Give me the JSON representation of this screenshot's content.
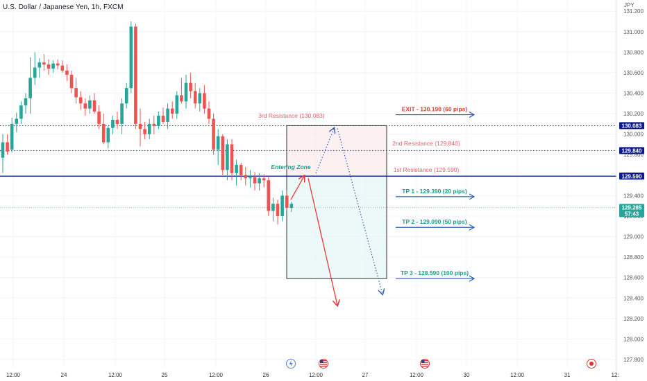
{
  "header": {
    "title": "U.S. Dollar / Japanese Yen, 1h, FXCM",
    "currency": "JPY"
  },
  "colors": {
    "bull": "#26a69a",
    "bear": "#ef5350",
    "navy": "#0d1b8c",
    "blue": "#2e5cb8",
    "red": "#e53935",
    "teal": "#1a9c8c",
    "dotted_green": "#7dcea0"
  },
  "chart_data": {
    "type": "candlestick",
    "ylim": [
      127.7,
      131.2
    ],
    "y_ticks": [
      "131.200",
      "131.000",
      "130.800",
      "130.600",
      "130.400",
      "130.200",
      "130.000",
      "129.800",
      "129.600",
      "129.400",
      "129.200",
      "129.000",
      "128.800",
      "128.600",
      "128.400",
      "128.200",
      "128.000",
      "127.800"
    ],
    "x_ticks": [
      "12:00",
      "24",
      "12:00",
      "25",
      "12:00",
      "26",
      "12:00",
      "27",
      "12:00",
      "30",
      "12:00",
      "31",
      "12:"
    ],
    "candles": [
      [
        0,
        129.77,
        130.0,
        129.62,
        129.92
      ],
      [
        1,
        129.92,
        130.0,
        129.8,
        129.83
      ],
      [
        2,
        129.85,
        130.16,
        129.82,
        130.1
      ],
      [
        3,
        130.1,
        130.21,
        130.02,
        130.15
      ],
      [
        4,
        130.15,
        130.32,
        130.1,
        130.28
      ],
      [
        5,
        130.28,
        130.4,
        130.2,
        130.35
      ],
      [
        6,
        130.35,
        130.75,
        130.2,
        130.55
      ],
      [
        7,
        130.55,
        130.8,
        130.48,
        130.65
      ],
      [
        8,
        130.65,
        130.74,
        130.55,
        130.7
      ],
      [
        9,
        130.7,
        130.78,
        130.62,
        130.68
      ],
      [
        10,
        130.68,
        130.73,
        130.58,
        130.64
      ],
      [
        11,
        130.64,
        130.72,
        130.6,
        130.69
      ],
      [
        12,
        130.69,
        130.73,
        130.63,
        130.67
      ],
      [
        13,
        130.67,
        130.72,
        130.6,
        130.62
      ],
      [
        14,
        130.62,
        130.68,
        130.52,
        130.58
      ],
      [
        15,
        130.58,
        130.62,
        130.4,
        130.45
      ],
      [
        16,
        130.45,
        130.55,
        130.3,
        130.36
      ],
      [
        17,
        130.36,
        130.42,
        130.24,
        130.3
      ],
      [
        18,
        130.3,
        130.35,
        130.18,
        130.25
      ],
      [
        19,
        130.25,
        130.38,
        130.2,
        130.33
      ],
      [
        20,
        130.33,
        130.4,
        130.2,
        130.22
      ],
      [
        21,
        130.22,
        130.28,
        130.05,
        130.1
      ],
      [
        22,
        130.1,
        130.2,
        129.9,
        129.92
      ],
      [
        23,
        129.92,
        130.08,
        129.86,
        130.06
      ],
      [
        24,
        130.06,
        130.18,
        130.0,
        130.14
      ],
      [
        25,
        130.14,
        130.22,
        130.05,
        130.1
      ],
      [
        26,
        130.1,
        130.35,
        130.0,
        130.3
      ],
      [
        27,
        130.3,
        130.5,
        130.25,
        130.45
      ],
      [
        28,
        130.45,
        131.1,
        130.4,
        131.05
      ],
      [
        29,
        131.05,
        131.08,
        130.05,
        130.1
      ],
      [
        30,
        130.1,
        130.25,
        129.88,
        130.05
      ],
      [
        31,
        130.05,
        130.12,
        129.95,
        130.0
      ],
      [
        32,
        130.0,
        130.15,
        129.95,
        130.1
      ],
      [
        33,
        130.1,
        130.18,
        130.0,
        130.08
      ],
      [
        34,
        130.08,
        130.22,
        130.05,
        130.18
      ],
      [
        35,
        130.18,
        130.26,
        130.1,
        130.12
      ],
      [
        36,
        130.12,
        130.3,
        130.05,
        130.25
      ],
      [
        37,
        130.25,
        130.32,
        130.15,
        130.2
      ],
      [
        38,
        130.2,
        130.42,
        130.15,
        130.38
      ],
      [
        39,
        130.38,
        130.55,
        130.3,
        130.32
      ],
      [
        40,
        130.32,
        130.58,
        130.25,
        130.5
      ],
      [
        41,
        130.5,
        130.6,
        130.35,
        130.42
      ],
      [
        42,
        130.42,
        130.5,
        130.25,
        130.3
      ],
      [
        43,
        130.3,
        130.45,
        130.22,
        130.4
      ],
      [
        44,
        130.4,
        130.48,
        130.2,
        130.25
      ],
      [
        45,
        130.25,
        130.32,
        130.1,
        130.15
      ],
      [
        46,
        130.15,
        130.2,
        129.8,
        129.85
      ],
      [
        47,
        129.85,
        130.05,
        129.7,
        129.98
      ],
      [
        48,
        129.98,
        130.0,
        129.6,
        129.65
      ],
      [
        49,
        129.65,
        129.95,
        129.55,
        129.9
      ],
      [
        50,
        129.9,
        129.95,
        129.55,
        129.62
      ],
      [
        51,
        129.62,
        129.75,
        129.5,
        129.7
      ],
      [
        52,
        129.7,
        129.72,
        129.55,
        129.6
      ],
      [
        53,
        129.6,
        129.68,
        129.5,
        129.57
      ],
      [
        54,
        129.57,
        129.65,
        129.48,
        129.58
      ],
      [
        55,
        129.58,
        129.63,
        129.45,
        129.52
      ],
      [
        56,
        129.52,
        129.62,
        129.45,
        129.57
      ],
      [
        57,
        129.57,
        129.61,
        129.48,
        129.55
      ],
      [
        58,
        129.55,
        129.58,
        129.2,
        129.25
      ],
      [
        59,
        129.25,
        129.38,
        129.15,
        129.32
      ],
      [
        60,
        129.32,
        129.36,
        129.12,
        129.2
      ],
      [
        61,
        129.2,
        129.45,
        129.15,
        129.4
      ],
      [
        62,
        129.4,
        129.45,
        129.25,
        129.28
      ],
      [
        63,
        129.28,
        129.34,
        129.24,
        129.32
      ]
    ],
    "horizontal_lines": [
      {
        "price": 130.083,
        "tag": "130.083",
        "style": "dotted"
      },
      {
        "price": 129.84,
        "tag": "129.840",
        "style": "dotted"
      },
      {
        "price": 129.59,
        "tag": "129.590",
        "style": "solid"
      },
      {
        "price": 129.285,
        "tag": "129.285",
        "sub": "57:43",
        "style": "dotted-green"
      }
    ],
    "zone": {
      "upper": 130.083,
      "middle": 129.59,
      "lower": 128.59
    },
    "annotations": {
      "res3": "3rd Resistance (130.083)",
      "res2": "2nd Resistance (129.840)",
      "res1": "1st Resistance (129.590)",
      "entering": "Entering Zone",
      "exit": "EXIT - 130.190 (60 pips)",
      "tp1": "TP 1 - 129.390 (20 pips)",
      "tp2": "TP 2 - 129.090 (50 pips)",
      "tp3": "TP 3 - 128.590 (100 pips)"
    },
    "target_prices": {
      "exit": 130.19,
      "tp1": 129.39,
      "tp2": 129.09,
      "tp3": 128.59
    },
    "path_solid": [
      [
        129.36,
        129.59
      ],
      [
        129.59,
        128.33
      ]
    ],
    "path_dotted": [
      [
        129.59,
        130.083
      ],
      [
        130.083,
        128.44
      ]
    ]
  }
}
